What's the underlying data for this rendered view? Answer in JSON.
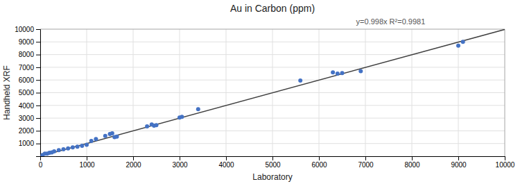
{
  "chart_data": {
    "type": "scatter",
    "title": "Au in Carbon (ppm)",
    "x_label": "Laboratory",
    "y_label": "Handheld XRF",
    "annotation": "y=0.998x   R²=0.9981",
    "xlim": [
      0,
      10000
    ],
    "ylim": [
      0,
      10000
    ],
    "xticks": [
      0,
      1000,
      2000,
      3000,
      4000,
      5000,
      6000,
      7000,
      8000,
      9000,
      10000
    ],
    "yticks": [
      1000,
      2000,
      3000,
      4000,
      5000,
      6000,
      7000,
      8000,
      9000,
      10000
    ],
    "grid": true,
    "series": [
      {
        "type": "scatter",
        "color": "#4472C4",
        "x": [
          50,
          100,
          150,
          200,
          250,
          300,
          400,
          500,
          600,
          700,
          800,
          900,
          1000,
          1100,
          1200,
          1400,
          1500,
          1550,
          1600,
          1650,
          2300,
          2400,
          2450,
          2500,
          3000,
          3050,
          3400,
          5600,
          6300,
          6400,
          6500,
          6900,
          9000,
          9100
        ],
        "values": [
          100,
          200,
          200,
          280,
          300,
          380,
          480,
          550,
          620,
          700,
          750,
          820,
          900,
          1200,
          1350,
          1600,
          1750,
          1800,
          1500,
          1550,
          2350,
          2500,
          2400,
          2450,
          3050,
          3100,
          3700,
          5950,
          6600,
          6500,
          6550,
          6700,
          8700,
          9000
        ]
      },
      {
        "type": "line",
        "color": "#404040",
        "x": [
          0,
          10000
        ],
        "values": [
          0,
          9980
        ]
      }
    ]
  }
}
